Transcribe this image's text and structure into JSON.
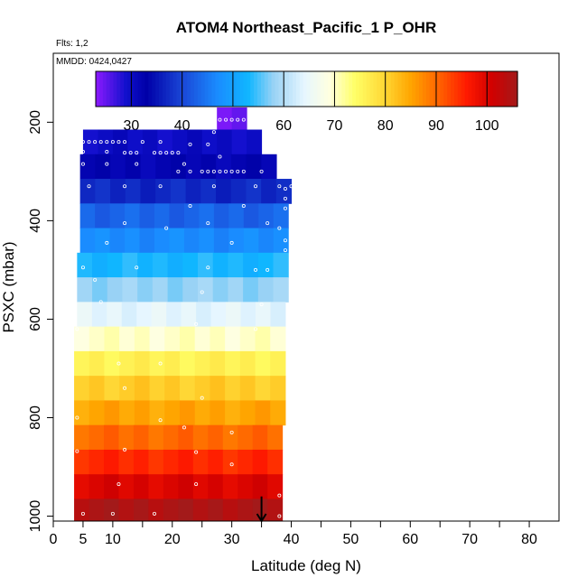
{
  "chart_data": {
    "type": "heatmap",
    "title": "ATOM4 Northeast_Pacific_1 P_OHR",
    "flights_label": "Flts: 1,2",
    "dates_label": "MMDD: 0424,0427",
    "xlabel": "Latitude (deg N)",
    "ylabel": "PSXC (mbar)",
    "xlim": [
      0,
      85
    ],
    "ylim": [
      1010,
      60
    ],
    "y_reversed": true,
    "x_ticks": [
      0,
      5,
      10,
      20,
      30,
      40,
      50,
      60,
      70,
      80
    ],
    "x_minor_ticks": [
      15,
      25,
      35,
      45,
      55,
      65,
      75
    ],
    "y_ticks": [
      200,
      400,
      600,
      800,
      1000
    ],
    "colorbar": {
      "range": [
        23,
        106
      ],
      "ticks": [
        30,
        40,
        50,
        60,
        70,
        80,
        90,
        100
      ],
      "stops": [
        {
          "v": 23,
          "color": "#8c1aff"
        },
        {
          "v": 29,
          "color": "#1010cc"
        },
        {
          "v": 33,
          "color": "#0000a8"
        },
        {
          "v": 40,
          "color": "#1a46d6"
        },
        {
          "v": 47,
          "color": "#1a8cff"
        },
        {
          "v": 53,
          "color": "#10b6ff"
        },
        {
          "v": 58,
          "color": "#99d2f5"
        },
        {
          "v": 64,
          "color": "#e6f6ff"
        },
        {
          "v": 69,
          "color": "#ffffe0"
        },
        {
          "v": 74,
          "color": "#ffff66"
        },
        {
          "v": 80,
          "color": "#ffd633"
        },
        {
          "v": 85,
          "color": "#ffa500"
        },
        {
          "v": 90,
          "color": "#ff6a00"
        },
        {
          "v": 96,
          "color": "#ff1a00"
        },
        {
          "v": 101,
          "color": "#d10000"
        },
        {
          "v": 106,
          "color": "#a31a1a"
        }
      ]
    },
    "bands": [
      {
        "p_top": 170,
        "p_bot": 215,
        "lat_min": 27.5,
        "lat_max": 32.5,
        "value": 25
      },
      {
        "p_top": 215,
        "p_bot": 265,
        "lat_min": 5.0,
        "lat_max": 35.0,
        "value": 30
      },
      {
        "p_top": 265,
        "p_bot": 315,
        "lat_min": 4.5,
        "lat_max": 37.5,
        "value": 32
      },
      {
        "p_top": 315,
        "p_bot": 365,
        "lat_min": 4.5,
        "lat_max": 40.0,
        "value": 37
      },
      {
        "p_top": 365,
        "p_bot": 415,
        "lat_min": 4.5,
        "lat_max": 39.5,
        "value": 43
      },
      {
        "p_top": 415,
        "p_bot": 465,
        "lat_min": 4.5,
        "lat_max": 39.5,
        "value": 47
      },
      {
        "p_top": 465,
        "p_bot": 515,
        "lat_min": 4.0,
        "lat_max": 39.5,
        "value": 53
      },
      {
        "p_top": 515,
        "p_bot": 565,
        "lat_min": 4.0,
        "lat_max": 39.5,
        "value": 58
      },
      {
        "p_top": 565,
        "p_bot": 615,
        "lat_min": 4.0,
        "lat_max": 39.0,
        "value": 64
      },
      {
        "p_top": 615,
        "p_bot": 665,
        "lat_min": 3.5,
        "lat_max": 39.0,
        "value": 70
      },
      {
        "p_top": 665,
        "p_bot": 715,
        "lat_min": 3.5,
        "lat_max": 39.0,
        "value": 76
      },
      {
        "p_top": 715,
        "p_bot": 765,
        "lat_min": 3.5,
        "lat_max": 39.0,
        "value": 81
      },
      {
        "p_top": 765,
        "p_bot": 815,
        "lat_min": 3.5,
        "lat_max": 39.0,
        "value": 85
      },
      {
        "p_top": 815,
        "p_bot": 865,
        "lat_min": 3.5,
        "lat_max": 38.5,
        "value": 90
      },
      {
        "p_top": 865,
        "p_bot": 915,
        "lat_min": 3.5,
        "lat_max": 38.5,
        "value": 95
      },
      {
        "p_top": 915,
        "p_bot": 965,
        "lat_min": 3.5,
        "lat_max": 38.5,
        "value": 100
      },
      {
        "p_top": 965,
        "p_bot": 1010,
        "lat_min": 3.5,
        "lat_max": 38.5,
        "value": 105
      }
    ],
    "sample_points": [
      [
        28,
        195
      ],
      [
        29,
        195
      ],
      [
        30,
        195
      ],
      [
        31,
        195
      ],
      [
        32,
        195
      ],
      [
        27,
        220
      ],
      [
        5,
        240
      ],
      [
        6,
        240
      ],
      [
        7,
        240
      ],
      [
        8,
        240
      ],
      [
        9,
        240
      ],
      [
        10,
        240
      ],
      [
        11,
        240
      ],
      [
        12,
        240
      ],
      [
        15,
        240
      ],
      [
        18,
        240
      ],
      [
        23,
        245
      ],
      [
        26,
        245
      ],
      [
        5,
        260
      ],
      [
        9,
        260
      ],
      [
        12,
        262
      ],
      [
        13,
        262
      ],
      [
        14,
        262
      ],
      [
        17,
        262
      ],
      [
        18,
        262
      ],
      [
        19,
        262
      ],
      [
        20,
        262
      ],
      [
        21,
        262
      ],
      [
        28,
        270
      ],
      [
        5,
        285
      ],
      [
        9,
        285
      ],
      [
        14,
        285
      ],
      [
        22,
        285
      ],
      [
        21,
        300
      ],
      [
        23,
        300
      ],
      [
        25,
        300
      ],
      [
        26,
        300
      ],
      [
        27,
        300
      ],
      [
        28,
        300
      ],
      [
        29,
        300
      ],
      [
        30,
        300
      ],
      [
        31,
        300
      ],
      [
        32,
        300
      ],
      [
        35,
        300
      ],
      [
        6,
        330
      ],
      [
        12,
        330
      ],
      [
        18,
        330
      ],
      [
        27,
        330
      ],
      [
        34,
        330
      ],
      [
        38,
        330
      ],
      [
        39,
        335
      ],
      [
        40,
        330
      ],
      [
        39,
        355
      ],
      [
        23,
        370
      ],
      [
        32,
        370
      ],
      [
        39,
        375
      ],
      [
        12,
        405
      ],
      [
        26,
        405
      ],
      [
        36,
        405
      ],
      [
        19,
        415
      ],
      [
        38,
        415
      ],
      [
        9,
        445
      ],
      [
        30,
        445
      ],
      [
        39,
        440
      ],
      [
        39,
        460
      ],
      [
        5,
        495
      ],
      [
        14,
        495
      ],
      [
        26,
        495
      ],
      [
        34,
        500
      ],
      [
        36,
        500
      ],
      [
        7,
        520
      ],
      [
        25,
        545
      ],
      [
        8,
        565
      ],
      [
        35,
        570
      ],
      [
        24,
        610
      ],
      [
        4,
        620
      ],
      [
        34,
        620
      ],
      [
        11,
        690
      ],
      [
        18,
        690
      ],
      [
        12,
        740
      ],
      [
        25,
        760
      ],
      [
        4,
        800
      ],
      [
        18,
        805
      ],
      [
        22,
        820
      ],
      [
        30,
        830
      ],
      [
        12,
        865
      ],
      [
        4,
        868
      ],
      [
        24,
        870
      ],
      [
        30,
        895
      ],
      [
        11,
        935
      ],
      [
        24,
        935
      ],
      [
        38,
        958
      ],
      [
        5,
        995
      ],
      [
        10,
        995
      ],
      [
        17,
        995
      ],
      [
        38,
        1000
      ]
    ],
    "marker": {
      "lat": 35,
      "arrow_from": 960,
      "arrow_to": 1010
    }
  }
}
